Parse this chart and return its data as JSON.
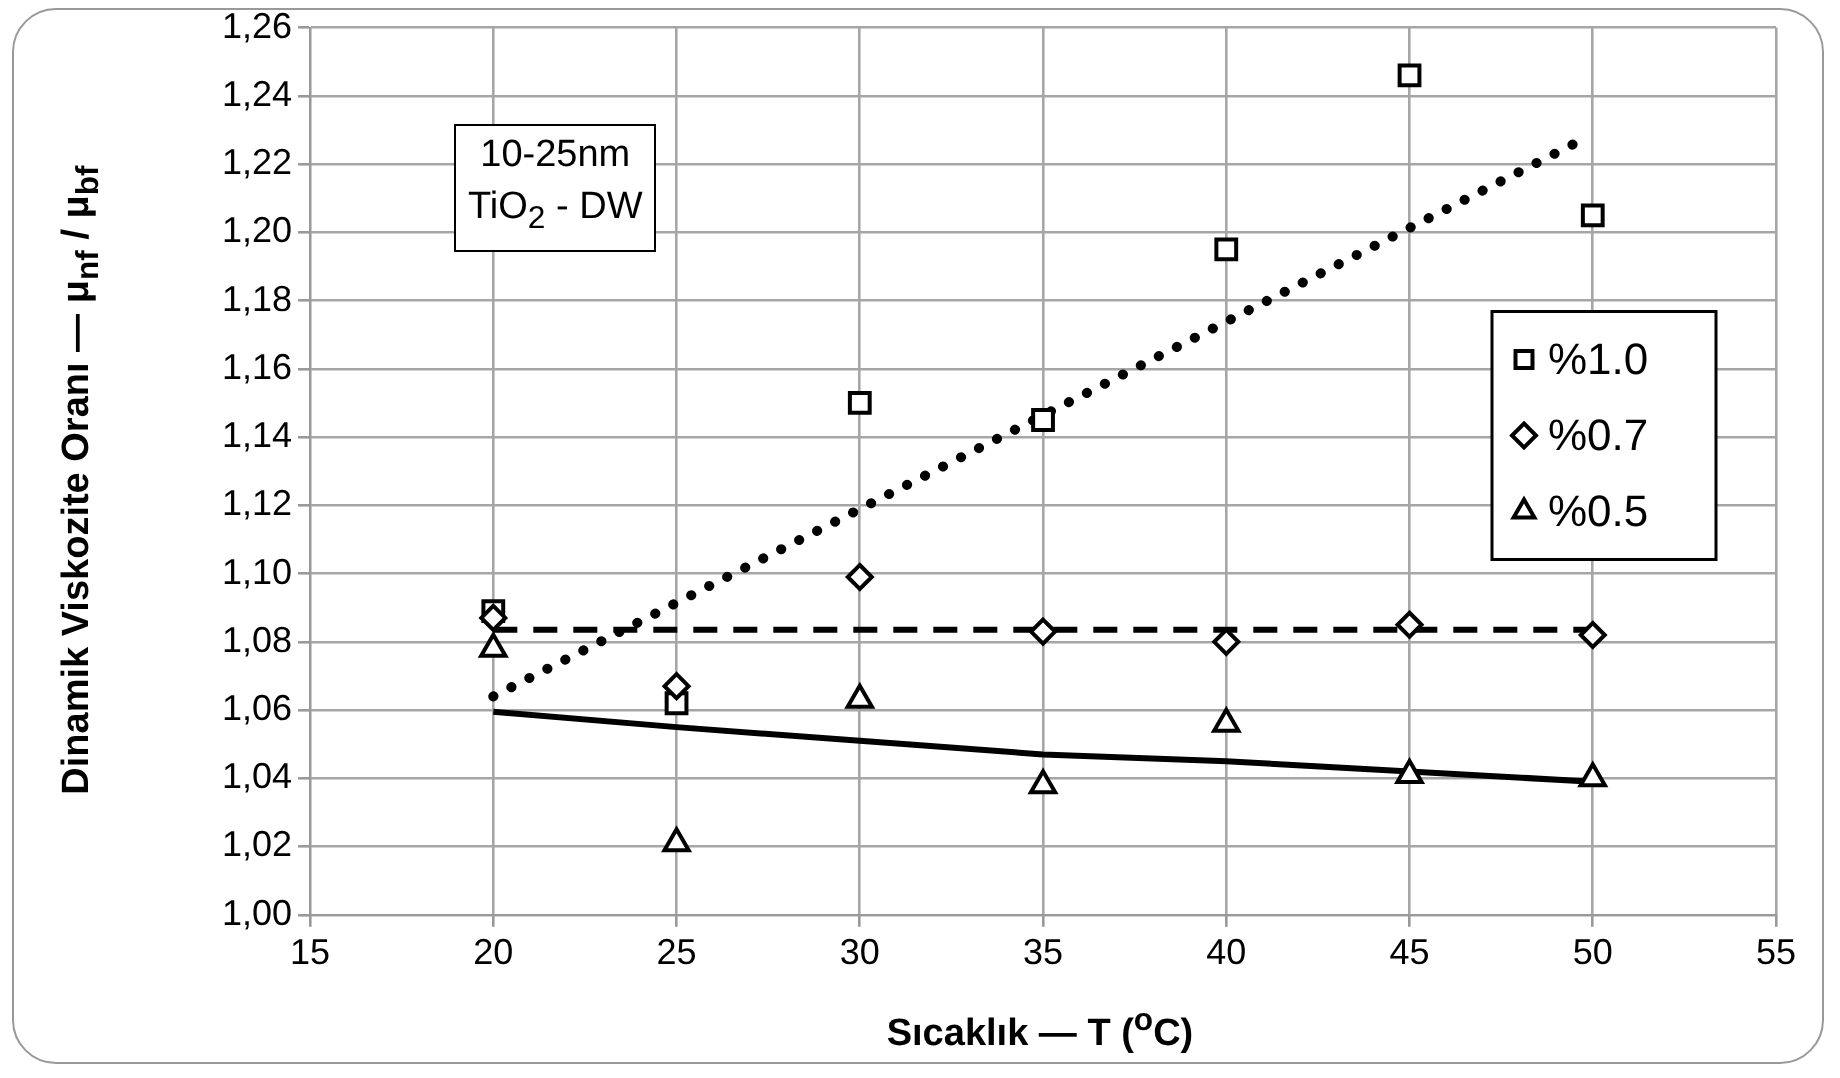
{
  "chart_data": {
    "type": "scatter",
    "xlabel": "Sıcaklık — T ($^{o}$C)",
    "ylabel": "Dinamik Viskozite Oranı — μ$_{nf}$ / μ$_{bf}$",
    "annotations": [
      "10-25nm\nTiO$_{2}$ - DW"
    ],
    "x": [
      20,
      25,
      30,
      35,
      40,
      45,
      50
    ],
    "series": [
      {
        "name": "%1.0",
        "color": "#000000",
        "marker": "square",
        "values": [
          1.089,
          1.062,
          1.15,
          1.145,
          1.195,
          1.246,
          1.205
        ]
      },
      {
        "name": "%0.7",
        "color": "#000000",
        "marker": "diamond",
        "values": [
          1.087,
          1.067,
          1.099,
          1.083,
          1.08,
          1.085,
          1.082
        ]
      },
      {
        "name": "%0.5",
        "color": "#000000",
        "marker": "triangle",
        "values": [
          1.078,
          1.021,
          1.063,
          1.038,
          1.056,
          1.041,
          1.04
        ]
      },
      {
        "type": "line",
        "color": "#000000",
        "marker": "none",
        "line_style": "dotted",
        "x": [
          20,
          49.5
        ],
        "values": [
          1.064,
          1.226
        ]
      },
      {
        "type": "line",
        "color": "#000000",
        "marker": "none",
        "line_style": "dashed",
        "x": [
          20,
          50
        ],
        "values": [
          1.0835,
          1.0835
        ]
      },
      {
        "type": "line",
        "color": "#000000",
        "marker": "none",
        "line_style": "solid",
        "x": [
          20,
          25,
          30,
          35,
          40,
          45,
          50
        ],
        "values": [
          1.0595,
          1.055,
          1.051,
          1.047,
          1.045,
          1.042,
          1.039
        ]
      }
    ],
    "xlim": [
      15,
      55
    ],
    "xticks": [
      15,
      20,
      25,
      30,
      35,
      40,
      45,
      50,
      55
    ],
    "ylim": [
      1.0,
      1.26
    ],
    "yticks": [
      {
        "value": 1.0,
        "label": "1,00"
      },
      {
        "value": 1.02,
        "label": "1,02"
      },
      {
        "value": 1.04,
        "label": "1,04"
      },
      {
        "value": 1.06,
        "label": "1,06"
      },
      {
        "value": 1.08,
        "label": "1,08"
      },
      {
        "value": 1.1,
        "label": "1,10"
      },
      {
        "value": 1.12,
        "label": "1,12"
      },
      {
        "value": 1.14,
        "label": "1,14"
      },
      {
        "value": 1.16,
        "label": "1,16"
      },
      {
        "value": 1.18,
        "label": "1,18"
      },
      {
        "value": 1.2,
        "label": "1,20"
      },
      {
        "value": 1.22,
        "label": "1,22"
      },
      {
        "value": 1.24,
        "label": "1,24"
      },
      {
        "value": 1.26,
        "label": "1,26"
      }
    ],
    "grid": true,
    "legend": "right"
  }
}
